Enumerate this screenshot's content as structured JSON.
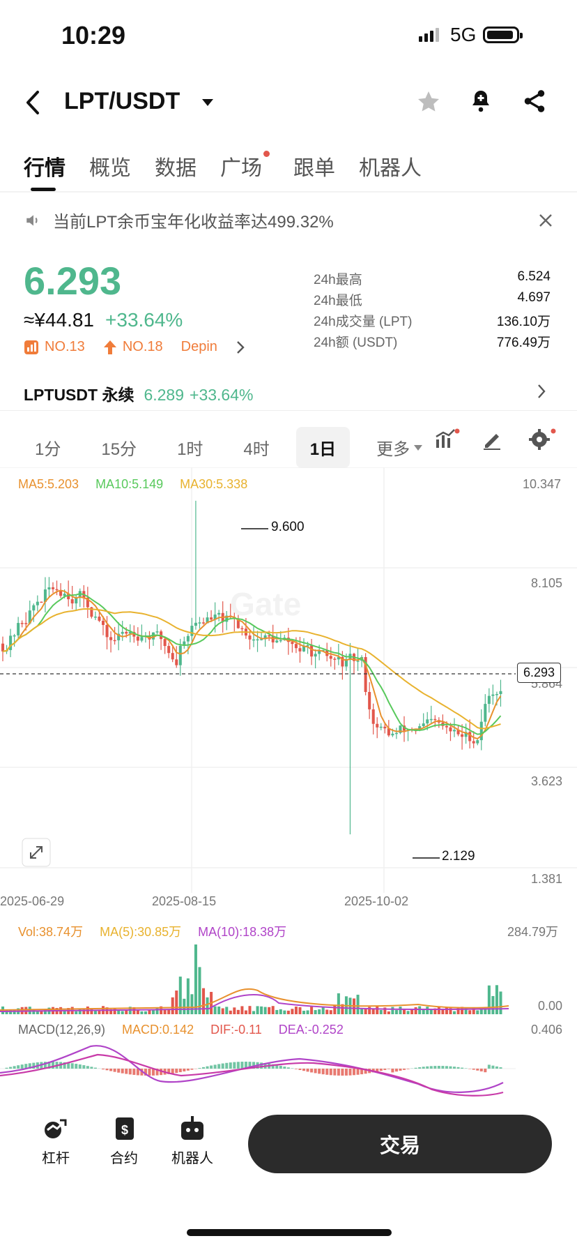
{
  "status": {
    "time": "10:29",
    "network": "5G"
  },
  "header": {
    "pair": "LPT/USDT"
  },
  "tabs": [
    "行情",
    "概览",
    "数据",
    "广场",
    "跟单",
    "机器人"
  ],
  "notice": "当前LPT余币宝年化收益率达499.32%",
  "ticker": {
    "price": "6.293",
    "cny": "≈¥44.81",
    "change": "+33.64%",
    "rank1": "NO.13",
    "rank2": "NO.18",
    "tag": "Depin",
    "stats": [
      {
        "label": "24h最高",
        "value": "6.524"
      },
      {
        "label": "24h最低",
        "value": "4.697"
      },
      {
        "label": "24h成交量 (LPT)",
        "value": "136.10万"
      },
      {
        "label": "24h额 (USDT)",
        "value": "776.49万"
      }
    ]
  },
  "perpetual": {
    "name": "LPTUSDT 永续",
    "price": "6.289",
    "change": "+33.64%"
  },
  "timeframes": [
    "1分",
    "15分",
    "1时",
    "4时",
    "1日",
    "更多"
  ],
  "chart_data": {
    "type": "candlestick",
    "ma_legend": [
      "MA5:5.203",
      "MA10:5.149",
      "MA30:5.338"
    ],
    "y_ticks": [
      "10.347",
      "8.105",
      "5.864",
      "3.623",
      "1.381"
    ],
    "x_ticks": [
      "2025-06-29",
      "2025-08-15",
      "2025-10-02"
    ],
    "high_marker": "9.600",
    "low_marker": "2.129",
    "last_price": "6.293",
    "volume_legend": [
      "Vol:38.74万",
      "MA(5):30.85万",
      "MA(10):18.38万"
    ],
    "volume_ticks": [
      "284.79万",
      "0.00"
    ],
    "macd_legend": [
      "MACD(12,26,9)",
      "MACD:0.142",
      "DIF:-0.11",
      "DEA:-0.252"
    ],
    "macd_ticks": [
      "0.406"
    ]
  },
  "nav": {
    "items": [
      "杠杆",
      "合约",
      "机器人"
    ],
    "trade": "交易"
  },
  "colors": {
    "up": "#4fb78d",
    "down": "#e2574c"
  }
}
